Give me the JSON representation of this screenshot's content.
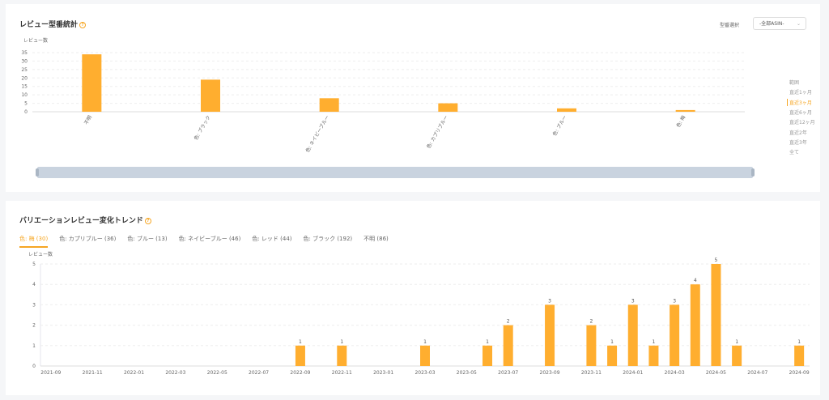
{
  "model_stats": {
    "title": "レビュー型番統計",
    "help_icon": "question-circle-icon",
    "select_label": "型番選択",
    "select_value": "-全部ASIN-",
    "range_options": [
      "範囲",
      "直近1ヶ月",
      "直近3ヶ月",
      "直近6ヶ月",
      "直近12ヶ月",
      "直近2年",
      "直近3年",
      "全て"
    ],
    "range_selected": "直近3ヶ月"
  },
  "trend": {
    "title": "バリエーションレビュー変化トレンド",
    "tabs": [
      {
        "label": "色: 梅 (30)",
        "active": true
      },
      {
        "label": "色: カプリブルー (36)"
      },
      {
        "label": "色: ブルー (13)"
      },
      {
        "label": "色: ネイビーブルー (46)"
      },
      {
        "label": "色: レッド (44)"
      },
      {
        "label": "色: ブラック (192)"
      },
      {
        "label": "不明 (86)"
      }
    ]
  },
  "colors": {
    "accent": "#ffae2f",
    "bar": "#ffae2f"
  },
  "chart_data": [
    {
      "type": "bar",
      "ylabel": "レビュー数",
      "ylim": [
        0,
        35
      ],
      "yticks": [
        0,
        5,
        10,
        15,
        20,
        25,
        30,
        35
      ],
      "grid": true,
      "categories": [
        "不明",
        "色: ブラック",
        "色: ネイビーブルー",
        "色: カプリブルー",
        "色: ブルー",
        "色: 梅"
      ],
      "values": [
        34,
        19,
        8,
        5,
        2,
        1
      ]
    },
    {
      "type": "bar",
      "ylabel": "レビュー数",
      "ylim": [
        0,
        5
      ],
      "yticks": [
        0,
        1,
        2,
        3,
        4,
        5
      ],
      "grid": true,
      "categories": [
        "2021-09",
        "2021-10",
        "2021-11",
        "2021-12",
        "2022-01",
        "2022-02",
        "2022-03",
        "2022-04",
        "2022-05",
        "2022-06",
        "2022-07",
        "2022-08",
        "2022-09",
        "2022-10",
        "2022-11",
        "2022-12",
        "2023-01",
        "2023-02",
        "2023-03",
        "2023-04",
        "2023-05",
        "2023-06",
        "2023-07",
        "2023-08",
        "2023-09",
        "2023-10",
        "2023-11",
        "2023-12",
        "2024-01",
        "2024-02",
        "2024-03",
        "2024-04",
        "2024-05",
        "2024-06",
        "2024-07",
        "2024-08",
        "2024-09"
      ],
      "xtick_labels": [
        "2021-09",
        "2021-11",
        "2022-01",
        "2022-03",
        "2022-05",
        "2022-07",
        "2022-09",
        "2022-11",
        "2023-01",
        "2023-03",
        "2023-05",
        "2023-07",
        "2023-09",
        "2023-11",
        "2024-01",
        "2024-03",
        "2024-05",
        "2024-07",
        "2024-09"
      ],
      "values": [
        0,
        0,
        0,
        0,
        0,
        0,
        0,
        0,
        0,
        0,
        0,
        0,
        1,
        0,
        1,
        0,
        0,
        0,
        1,
        0,
        0,
        1,
        2,
        0,
        3,
        0,
        2,
        1,
        3,
        1,
        3,
        4,
        5,
        1,
        0,
        0,
        1
      ]
    }
  ]
}
